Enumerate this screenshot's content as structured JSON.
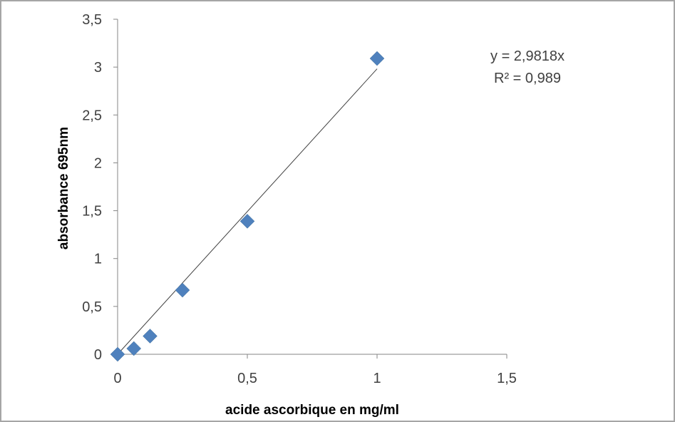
{
  "chart_data": {
    "type": "scatter",
    "xlabel": "acide ascorbique en mg/ml",
    "ylabel": "absorbance 695nm",
    "xlim": [
      0,
      1.5
    ],
    "ylim": [
      0,
      3.5
    ],
    "xticks": [
      "0",
      "0,5",
      "1",
      "1,5"
    ],
    "yticks": [
      "0",
      "0,5",
      "1",
      "1,5",
      "2",
      "2,5",
      "3",
      "3,5"
    ],
    "series": [
      {
        "x": [
          0,
          0.0625,
          0.125,
          0.25,
          0.5,
          1
        ],
        "y": [
          0.0,
          0.06,
          0.19,
          0.67,
          1.39,
          3.09
        ],
        "marker": "diamond",
        "color": "#4f81bd"
      }
    ],
    "trendline": {
      "type": "linear",
      "slope": 2.9818,
      "intercept": 0,
      "x_range": [
        0,
        1
      ],
      "color": "#404040"
    },
    "annotations": {
      "equation": "y = 2,9818x",
      "r_squared": "R² = 0,989"
    },
    "grid": false,
    "legend": "none"
  }
}
